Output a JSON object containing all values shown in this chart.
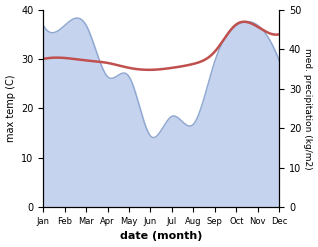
{
  "months": [
    "Jan",
    "Feb",
    "Mar",
    "Apr",
    "May",
    "Jun",
    "Jul",
    "Aug",
    "Sep",
    "Oct",
    "Nov",
    "Dec"
  ],
  "month_x": [
    0,
    1,
    2,
    3,
    4,
    5,
    6,
    7,
    8,
    9,
    10,
    11
  ],
  "temp": [
    30.0,
    30.2,
    29.7,
    29.2,
    28.2,
    27.8,
    28.2,
    29.0,
    31.5,
    37.0,
    36.5,
    35.0
  ],
  "precip": [
    46,
    46,
    46,
    33,
    33,
    18,
    23,
    21,
    37,
    46,
    46,
    37
  ],
  "temp_color": "#c0504d",
  "precip_fill_color": "#c5d3ee",
  "precip_line_color": "#8fa8d0",
  "temp_lw": 1.8,
  "precip_lw": 1.0,
  "ylim_left": [
    0,
    40
  ],
  "ylim_right": [
    0,
    50
  ],
  "xlabel": "date (month)",
  "ylabel_left": "max temp (C)",
  "ylabel_right": "med. precipitation (kg/m2)",
  "bg_color": "#ffffff",
  "yticks_left": [
    0,
    10,
    20,
    30,
    40
  ],
  "yticks_right": [
    0,
    10,
    20,
    30,
    40,
    50
  ],
  "figsize": [
    3.18,
    2.47
  ],
  "dpi": 100
}
